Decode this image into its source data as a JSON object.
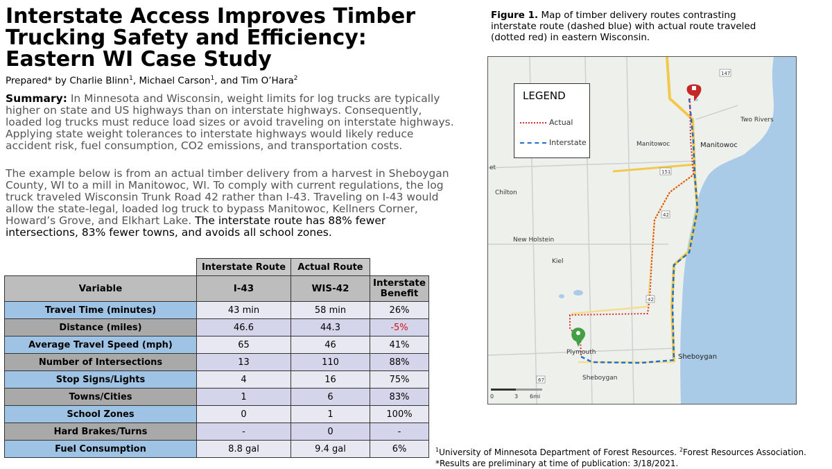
{
  "title": "Interstate Access Improves Timber Trucking Safety and Efficiency: Eastern WI Case Study",
  "authors": {
    "prefix": "Prepared* by ",
    "author1": "Charlie Blinn",
    "sup1": "1",
    "author2": "Michael Carson",
    "sup2": "1",
    "author3": "Tim O’Hara",
    "sup3": "2",
    "sep": ", ",
    "and": ", and "
  },
  "summary": {
    "label": "Summary:",
    "text": " In Minnesota and Wisconsin, weight limits for log trucks are typically higher on state and US highways than on interstate highways. Consequently, loaded log trucks must reduce load sizes or avoid traveling on interstate highways. Applying state weight tolerances to interstate highways would likely reduce accident risk, fuel consumption, CO2 emissions, and transportation costs."
  },
  "paragraph2": {
    "text": "The example below is from an actual timber delivery from a harvest in Sheboygan County, WI to a mill in Manitowoc, WI. To comply with current regulations, the log truck traveled Wisconsin Trunk Road 42 rather than I-43. Traveling on I-43 would allow the state-legal, loaded log truck to bypass Manitowoc, Kellners Corner, Howard’s Grove, and Elkhart Lake.",
    "emphasis": " The interstate route has 88% fewer intersections, 83% fewer towns, and avoids all school zones."
  },
  "figure": {
    "label": "Figure 1.",
    "caption": " Map of timber delivery routes contrasting interstate route (dashed blue) with actual route traveled (dotted red) in eastern Wisconsin."
  },
  "map": {
    "legend_title": "LEGEND",
    "legend_actual": "Actual",
    "legend_interstate": "Interstate",
    "places": {
      "two_rivers": "Two Rivers",
      "manitowoc_a": "Manitowoc",
      "manitowoc_b": "Manitowoc",
      "chilton": "Chilton",
      "new_holstein": "New Holstein",
      "kiel": "Kiel",
      "plymouth": "Plymouth",
      "sheboygan_a": "Sheboygan",
      "sheboygan_b": "Sheboygan",
      "et": "et"
    },
    "shields": {
      "h147": "147",
      "h151": "151",
      "h42a": "42",
      "h42b": "42",
      "h67": "67"
    },
    "scale": {
      "s0": "0",
      "s3": "3",
      "s6": "6mi"
    },
    "colors": {
      "actual": "#d32f2f",
      "interstate": "#1e6fd0",
      "water": "#a9cbe8",
      "land": "#eef0ec",
      "highway": "#f2c94c"
    }
  },
  "table": {
    "group_headers": {
      "interstate": "Interstate Route",
      "actual": "Actual Route"
    },
    "col_headers": {
      "variable": "Variable",
      "i43": "I-43",
      "wis42": "WIS-42",
      "benefit": "Interstate Benefit"
    },
    "rows": [
      {
        "variable": "Travel Time (minutes)",
        "i43": "43 min",
        "wis42": "58 min",
        "benefit": "26%"
      },
      {
        "variable": "Distance (miles)",
        "i43": "46.6",
        "wis42": "44.3",
        "benefit": "-5%"
      },
      {
        "variable": "Average Travel Speed (mph)",
        "i43": "65",
        "wis42": "46",
        "benefit": "41%"
      },
      {
        "variable": "Number of Intersections",
        "i43": "13",
        "wis42": "110",
        "benefit": "88%"
      },
      {
        "variable": "Stop Signs/Lights",
        "i43": "4",
        "wis42": "16",
        "benefit": "75%"
      },
      {
        "variable": "Towns/Cities",
        "i43": "1",
        "wis42": "6",
        "benefit": "83%"
      },
      {
        "variable": "School Zones",
        "i43": "0",
        "wis42": "1",
        "benefit": "100%"
      },
      {
        "variable": "Hard Brakes/Turns",
        "i43": "-",
        "wis42": "0",
        "benefit": "-"
      },
      {
        "variable": "Fuel Consumption",
        "i43": "8.8 gal",
        "wis42": "9.4 gal",
        "benefit": "6%"
      }
    ],
    "negative_color": "#d01010"
  },
  "footnotes": {
    "sup1": "1",
    "line1a": "University of Minnesota Department of Forest Resources. ",
    "sup2": "2",
    "line1b": "Forest Resources Association.",
    "line2": "*Results are preliminary at time of publication: 3/18/2021."
  }
}
